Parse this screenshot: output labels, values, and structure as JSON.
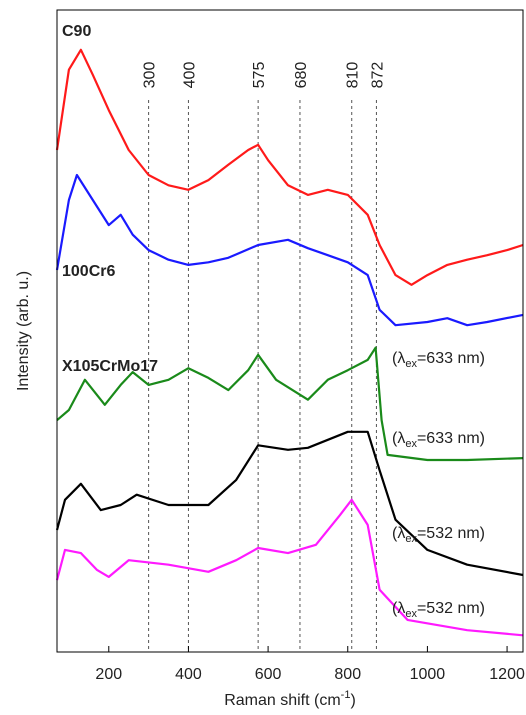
{
  "chart_data": {
    "type": "line",
    "xlabel": {
      "text": "Raman shift (cm",
      "superscript": "-1",
      "suffix": ")"
    },
    "ylabel": "Intensity (arb. u.)",
    "xlim": [
      70,
      1240
    ],
    "ylim": [
      0,
      100
    ],
    "xticks": [
      200,
      400,
      600,
      800,
      1000,
      1200
    ],
    "peaks": [
      300,
      400,
      575,
      680,
      810,
      872
    ],
    "curve_labels": [
      "C90",
      "100Cr6",
      "X105CrMo17"
    ],
    "annotations": [
      {
        "prefix": "(λ",
        "subscript": "ex",
        "suffix": "=633 nm)"
      },
      {
        "prefix": "(λ",
        "subscript": "ex",
        "suffix": "=633 nm)"
      },
      {
        "prefix": "(λ",
        "subscript": "ex",
        "suffix": "=532 nm)"
      },
      {
        "prefix": "(λ",
        "subscript": "ex",
        "suffix": "=532 nm)"
      }
    ],
    "series": [
      {
        "color": "#ff1a1a",
        "x": [
          70,
          100,
          130,
          160,
          200,
          250,
          300,
          350,
          400,
          450,
          500,
          550,
          575,
          600,
          650,
          700,
          750,
          800,
          850,
          880,
          920,
          960,
          1000,
          1050,
          1100,
          1150,
          1200,
          1240
        ],
        "values": [
          78.2,
          90.7,
          93.8,
          89.9,
          84.4,
          78.2,
          74.3,
          72.7,
          72.0,
          73.5,
          75.9,
          78.2,
          79.0,
          76.6,
          72.7,
          71.2,
          72.0,
          71.2,
          68.1,
          63.4,
          58.7,
          57.2,
          58.7,
          60.3,
          61.1,
          61.8,
          62.6,
          63.4
        ]
      },
      {
        "color": "#1a1aff",
        "x": [
          70,
          100,
          120,
          160,
          200,
          230,
          260,
          300,
          350,
          400,
          450,
          500,
          575,
          650,
          700,
          750,
          800,
          850,
          880,
          920,
          1000,
          1050,
          1100,
          1150,
          1240
        ],
        "values": [
          59.5,
          70.4,
          74.3,
          70.4,
          66.5,
          68.1,
          65.0,
          62.6,
          61.1,
          60.3,
          60.7,
          61.4,
          63.4,
          64.2,
          62.9,
          61.8,
          60.7,
          58.7,
          53.3,
          50.9,
          51.4,
          52.0,
          50.9,
          51.4,
          52.5
        ]
      },
      {
        "color": "#1a8a1a",
        "x": [
          70,
          100,
          140,
          190,
          230,
          260,
          300,
          350,
          400,
          450,
          500,
          550,
          575,
          620,
          700,
          750,
          800,
          850,
          870,
          885,
          900,
          1000,
          1100,
          1240
        ],
        "values": [
          36.1,
          37.7,
          42.4,
          38.5,
          41.6,
          43.6,
          41.6,
          42.4,
          44.2,
          42.7,
          40.8,
          43.9,
          46.3,
          42.4,
          39.3,
          42.4,
          43.9,
          45.5,
          47.4,
          36.1,
          30.7,
          29.9,
          29.9,
          30.2
        ]
      },
      {
        "color": "#000000",
        "x": [
          70,
          90,
          130,
          180,
          230,
          270,
          350,
          450,
          520,
          575,
          650,
          700,
          800,
          850,
          880,
          920,
          1000,
          1100,
          1240
        ],
        "values": [
          19.0,
          23.7,
          26.2,
          22.1,
          22.9,
          24.5,
          22.9,
          22.9,
          26.8,
          32.2,
          31.5,
          31.8,
          34.3,
          34.3,
          28.3,
          20.6,
          15.9,
          13.6,
          12.0
        ]
      },
      {
        "color": "#ff1aff",
        "x": [
          70,
          90,
          130,
          170,
          200,
          250,
          350,
          450,
          520,
          575,
          650,
          720,
          780,
          810,
          850,
          880,
          950,
          1100,
          1240
        ],
        "values": [
          11.2,
          15.9,
          15.4,
          12.8,
          11.7,
          14.3,
          13.6,
          12.5,
          14.3,
          16.2,
          15.4,
          16.7,
          21.3,
          23.7,
          19.8,
          9.7,
          5.0,
          3.4,
          2.6
        ]
      }
    ]
  }
}
